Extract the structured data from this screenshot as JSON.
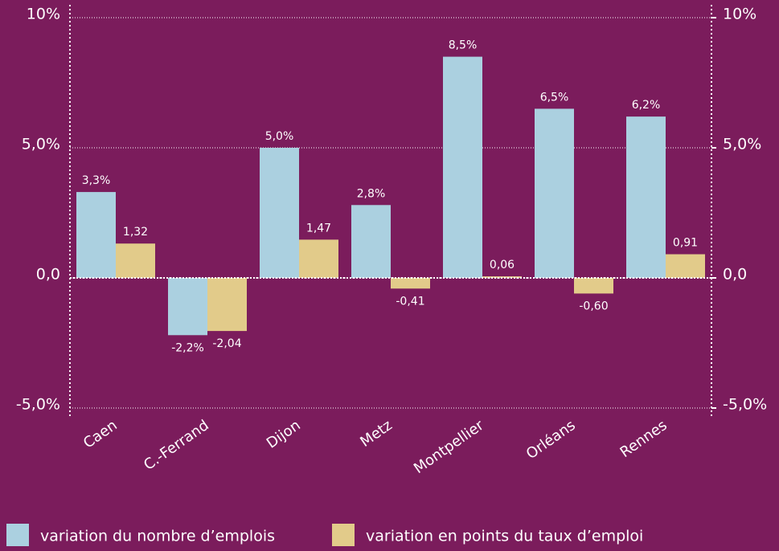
{
  "chart_data": {
    "type": "bar",
    "categories": [
      "Caen",
      "C.-Ferrand",
      "Dijon",
      "Metz",
      "Montpellier",
      "Orléans",
      "Rennes"
    ],
    "series": [
      {
        "name": "variation du nombre d’emplois",
        "color": "#abd0e0",
        "values": [
          3.3,
          -2.2,
          5.0,
          2.8,
          8.5,
          6.5,
          6.2
        ],
        "value_labels": [
          "3,3%",
          "-2,2%",
          "5,0%",
          "2,8%",
          "8,5%",
          "6,5%",
          "6,2%"
        ]
      },
      {
        "name": "variation en points du taux d’emploi",
        "color": "#e2cb8a",
        "values": [
          1.32,
          -2.04,
          1.47,
          -0.41,
          0.06,
          -0.6,
          0.91
        ],
        "value_labels": [
          "1,32",
          "-2,04",
          "1,47",
          "-0,41",
          "0,06",
          "-0,60",
          "0,91"
        ]
      }
    ],
    "ylim": [
      -5,
      10
    ],
    "yticks": [
      {
        "value": 10,
        "label": "10%"
      },
      {
        "value": 5,
        "label": "5,0%"
      },
      {
        "value": 0,
        "label": "0,0"
      },
      {
        "value": -5,
        "label": "-5,0%"
      }
    ],
    "y2lim": [
      -5,
      10
    ],
    "y2ticks": [
      {
        "value": 10,
        "label": "10%"
      },
      {
        "value": 5,
        "label": "5,0%"
      },
      {
        "value": 0,
        "label": "0,0"
      },
      {
        "value": -5,
        "label": "-5,0%"
      }
    ],
    "grid": true
  }
}
